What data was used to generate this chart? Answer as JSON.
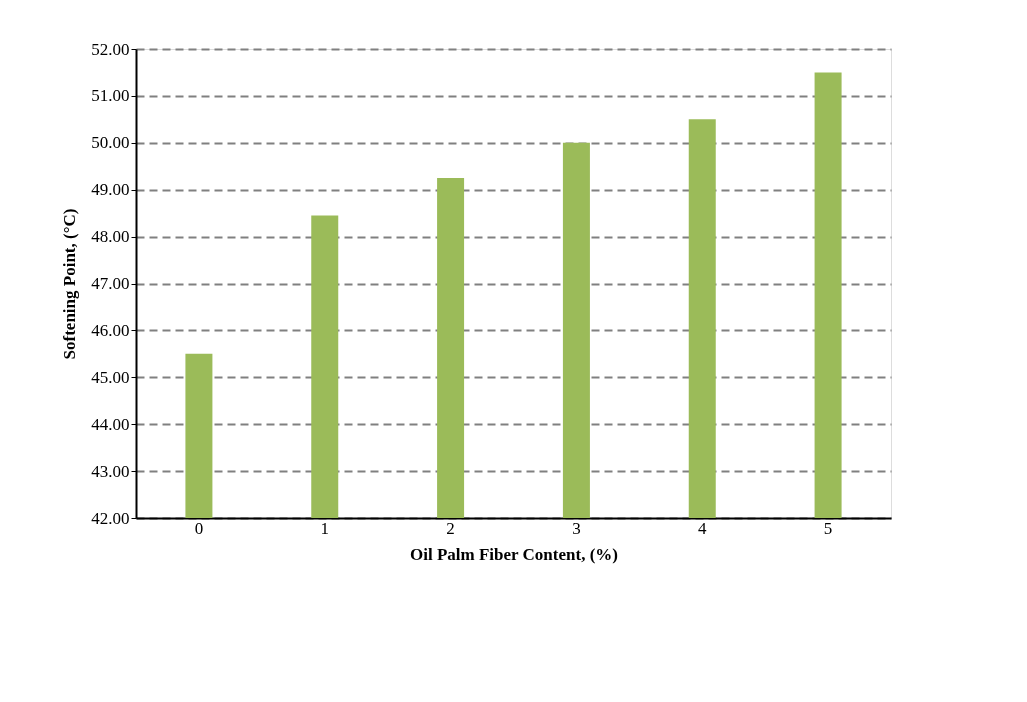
{
  "chart_data": {
    "type": "bar",
    "xlabel": "Oil Palm Fiber Content, (%)",
    "ylabel": "Softening Point, (°C)",
    "categories": [
      "0",
      "1",
      "2",
      "3",
      "4",
      "5"
    ],
    "values": [
      45.5,
      48.45,
      49.25,
      50.0,
      50.5,
      51.5
    ],
    "color": "#9bbb59",
    "ylim": [
      42,
      52
    ],
    "yticks": [
      {
        "value": 42,
        "label": "42.00"
      },
      {
        "value": 43,
        "label": "43.00"
      },
      {
        "value": 44,
        "label": "44.00"
      },
      {
        "value": 45,
        "label": "45.00"
      },
      {
        "value": 46,
        "label": "46.00"
      },
      {
        "value": 47,
        "label": "47.00"
      },
      {
        "value": 48,
        "label": "48.00"
      },
      {
        "value": 49,
        "label": "49.00"
      },
      {
        "value": 50,
        "label": "50.00"
      },
      {
        "value": 51,
        "label": "51.00"
      },
      {
        "value": 52,
        "label": "52.00"
      }
    ],
    "grid": "y",
    "line_style": "dashed"
  }
}
